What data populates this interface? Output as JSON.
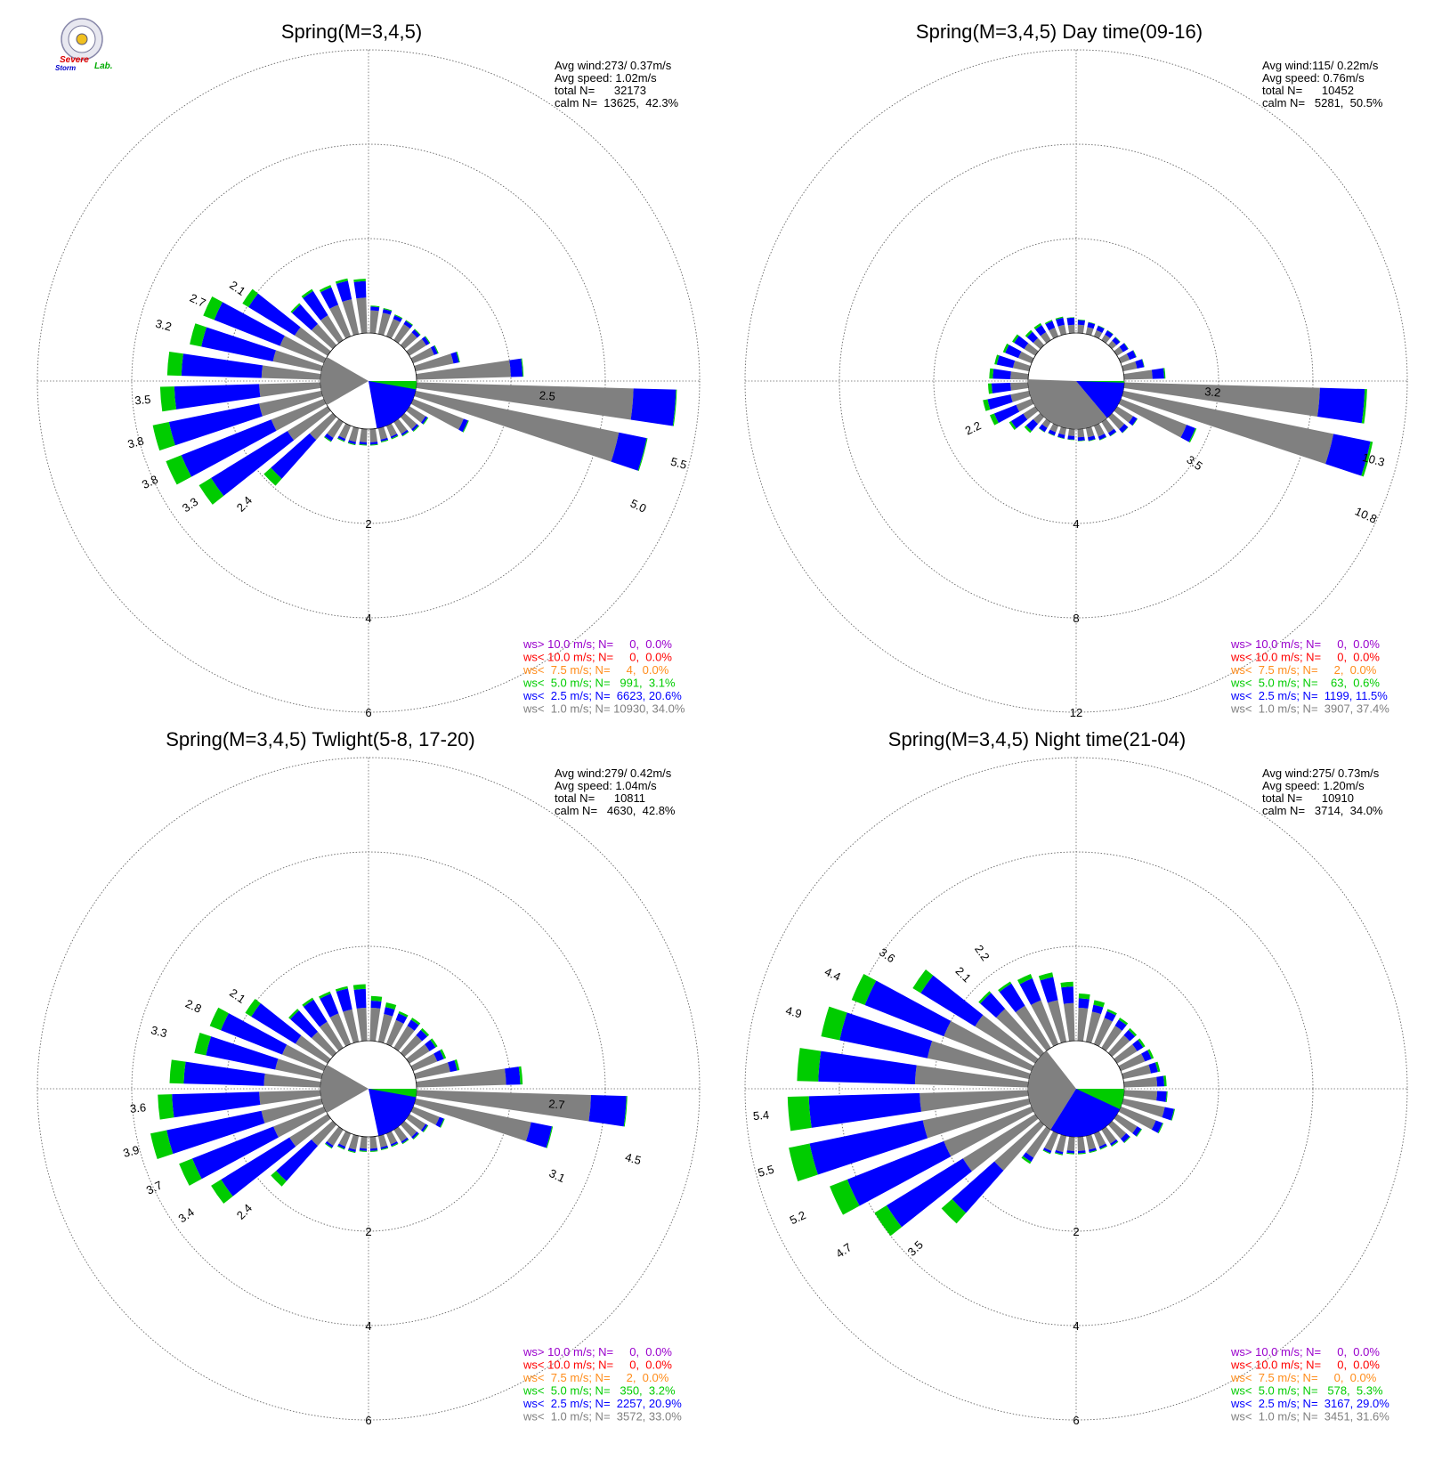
{
  "colors": {
    "ws_gt_10": "#9900cc",
    "ws_lt_10": "#ff0000",
    "ws_lt_7_5": "#ff8c1a",
    "ws_lt_5": "#00cc00",
    "ws_lt_2_5": "#0000ff",
    "ws_lt_1": "#808080",
    "grid": "#666666"
  },
  "logo": {
    "text_line1": "Severe",
    "text_line2": "Storm",
    "text_lab": "Lab."
  },
  "chart_data": [
    {
      "type": "wind-rose",
      "title": "Spring(M=3,4,5)",
      "stats": {
        "avg_wind": "Avg wind:273/ 0.37m/s",
        "avg_speed": "Avg speed: 1.02m/s",
        "total": "total N=      32173",
        "calm": "calm N=  13625,  42.3%"
      },
      "legend": [
        {
          "text": "ws> 10.0 m/s; N=     0,  0.0%",
          "color": "#9900cc"
        },
        {
          "text": "ws< 10.0 m/s; N=     0,  0.0%",
          "color": "#ff0000"
        },
        {
          "text": "ws<  7.5 m/s; N=     4,  0.0%",
          "color": "#ff8c1a"
        },
        {
          "text": "ws<  5.0 m/s; N=   991,  3.1%",
          "color": "#00cc00"
        },
        {
          "text": "ws<  2.5 m/s; N=  6623, 20.6%",
          "color": "#0000ff"
        },
        {
          "text": "ws<  1.0 m/s; N= 10930, 34.0%",
          "color": "#808080"
        }
      ],
      "ring_labels": [
        "2",
        "4",
        "6"
      ],
      "ring_max": 6,
      "calm_pie": {
        "gray_start_deg": 240,
        "gray_end_deg": 300,
        "blue_start_deg": 90,
        "blue_end_deg": 170,
        "green_start_deg": 90,
        "green_end_deg": 100
      },
      "directions_deg": [
        5,
        15,
        25,
        35,
        45,
        55,
        65,
        75,
        85,
        95,
        105,
        115,
        125,
        135,
        145,
        155,
        165,
        175,
        185,
        195,
        205,
        215,
        225,
        235,
        245,
        255,
        265,
        275,
        285,
        295,
        305,
        315,
        325,
        335,
        345,
        355
      ],
      "gray": [
        0.48,
        0.46,
        0.4,
        0.4,
        0.36,
        0.42,
        0.48,
        0.82,
        2.0,
        4.6,
        4.4,
        1.15,
        0.4,
        0.35,
        0.3,
        0.25,
        0.25,
        0.28,
        0.28,
        0.3,
        0.3,
        0.4,
        0.65,
        1.0,
        1.2,
        1.35,
        1.3,
        1.25,
        1.05,
        1.0,
        0.82,
        0.6,
        0.62,
        0.72,
        0.75,
        0.75
      ],
      "blue": [
        0.08,
        0.08,
        0.08,
        0.08,
        0.08,
        0.08,
        0.08,
        0.12,
        0.25,
        0.9,
        0.6,
        0.1,
        0.05,
        0.05,
        0.04,
        0.04,
        0.04,
        0.05,
        0.05,
        0.05,
        0.05,
        0.08,
        1.1,
        1.9,
        2.05,
        1.95,
        1.8,
        1.7,
        1.55,
        1.5,
        1.15,
        0.55,
        0.6,
        0.4,
        0.4,
        0.35
      ],
      "green": [
        0.02,
        0.02,
        0.02,
        0.02,
        0.02,
        0.02,
        0.02,
        0.02,
        0.02,
        0.02,
        0.02,
        0.02,
        0.02,
        0.02,
        0.02,
        0.02,
        0.02,
        0.02,
        0.02,
        0.02,
        0.02,
        0.02,
        0.2,
        0.3,
        0.35,
        0.35,
        0.3,
        0.3,
        0.25,
        0.25,
        0.15,
        0.04,
        0.05,
        0.05,
        0.05,
        0.05
      ],
      "petal_labels": [
        {
          "dir": 95,
          "text": "2.5",
          "value": 2.5
        },
        {
          "dir": 105,
          "text": "5.5",
          "value": 5.5
        },
        {
          "dir": 115,
          "text": "5.0",
          "value": 5.0
        },
        {
          "dir": 225,
          "text": "2.4",
          "value": 2.4
        },
        {
          "dir": 235,
          "text": "3.3",
          "value": 3.3
        },
        {
          "dir": 245,
          "text": "3.8",
          "value": 3.8
        },
        {
          "dir": 255,
          "text": "3.8",
          "value": 3.8
        },
        {
          "dir": 265,
          "text": "3.5",
          "value": 3.5
        },
        {
          "dir": 285,
          "text": "3.2",
          "value": 3.2
        },
        {
          "dir": 295,
          "text": "2.7",
          "value": 2.7
        },
        {
          "dir": 305,
          "text": "2.1",
          "value": 2.1
        }
      ]
    },
    {
      "type": "wind-rose",
      "title": "Spring(M=3,4,5) Day time(09-16)",
      "stats": {
        "avg_wind": "Avg wind:115/ 0.22m/s",
        "avg_speed": "Avg speed: 0.76m/s",
        "total": "total N=      10452",
        "calm": "calm N=   5281,  50.5%"
      },
      "legend": [
        {
          "text": "ws> 10.0 m/s; N=     0,  0.0%",
          "color": "#9900cc"
        },
        {
          "text": "ws< 10.0 m/s; N=     0,  0.0%",
          "color": "#ff0000"
        },
        {
          "text": "ws<  7.5 m/s; N=     2,  0.0%",
          "color": "#ff8c1a"
        },
        {
          "text": "ws<  5.0 m/s; N=    63,  0.6%",
          "color": "#00cc00"
        },
        {
          "text": "ws<  2.5 m/s; N=  1199, 11.5%",
          "color": "#0000ff"
        },
        {
          "text": "ws<  1.0 m/s; N=  3907, 37.4%",
          "color": "#808080"
        }
      ],
      "ring_labels": [
        "4",
        "8",
        "12"
      ],
      "ring_max": 12,
      "calm_pie": {
        "gray_start_deg": 140,
        "gray_end_deg": 272,
        "blue_start_deg": 90,
        "blue_end_deg": 140,
        "green_start_deg": 90,
        "green_end_deg": 92
      },
      "directions_deg": [
        5,
        15,
        25,
        35,
        45,
        55,
        65,
        75,
        85,
        95,
        105,
        115,
        125,
        135,
        145,
        155,
        165,
        175,
        185,
        195,
        205,
        215,
        225,
        235,
        245,
        255,
        265,
        275,
        285,
        295,
        305,
        315,
        325,
        335,
        345,
        355
      ],
      "gray": [
        0.35,
        0.3,
        0.28,
        0.28,
        0.25,
        0.3,
        0.4,
        0.6,
        1.2,
        8.3,
        9.1,
        3.0,
        0.8,
        0.7,
        0.55,
        0.5,
        0.4,
        0.35,
        0.3,
        0.3,
        0.3,
        0.3,
        0.4,
        0.6,
        0.7,
        0.8,
        0.75,
        0.75,
        0.7,
        0.6,
        0.55,
        0.4,
        0.4,
        0.4,
        0.4,
        0.35
      ],
      "blue": [
        0.2,
        0.2,
        0.2,
        0.2,
        0.2,
        0.25,
        0.3,
        0.3,
        0.5,
        1.9,
        1.6,
        0.4,
        0.2,
        0.2,
        0.15,
        0.15,
        0.15,
        0.15,
        0.15,
        0.15,
        0.15,
        0.2,
        0.4,
        0.6,
        1.0,
        1.0,
        0.8,
        0.75,
        0.7,
        0.6,
        0.5,
        0.35,
        0.35,
        0.3,
        0.3,
        0.3
      ],
      "green": [
        0.02,
        0.02,
        0.02,
        0.02,
        0.02,
        0.02,
        0.02,
        0.02,
        0.05,
        0.1,
        0.1,
        0.05,
        0.02,
        0.02,
        0.02,
        0.02,
        0.02,
        0.02,
        0.02,
        0.02,
        0.02,
        0.02,
        0.1,
        0.1,
        0.2,
        0.2,
        0.15,
        0.15,
        0.1,
        0.1,
        0.1,
        0.1,
        0.1,
        0.05,
        0.05,
        0.02
      ],
      "petal_labels": [
        {
          "dir": 95,
          "text": "3.2",
          "value": 3.2
        },
        {
          "dir": 105,
          "text": "10.3",
          "value": 10.3
        },
        {
          "dir": 115,
          "text": "10.8",
          "value": 10.8
        },
        {
          "dir": 125,
          "text": "3.5",
          "value": 3.5
        },
        {
          "dir": 245,
          "text": "2.2",
          "value": 2.2
        }
      ]
    },
    {
      "type": "wind-rose",
      "title": "Spring(M=3,4,5) Twlight(5-8, 17-20)",
      "stats": {
        "avg_wind": "Avg wind:279/ 0.42m/s",
        "avg_speed": "Avg speed: 1.04m/s",
        "total": "total N=      10811",
        "calm": "calm N=   4630,  42.8%"
      },
      "legend": [
        {
          "text": "ws> 10.0 m/s; N=     0,  0.0%",
          "color": "#9900cc"
        },
        {
          "text": "ws< 10.0 m/s; N=     0,  0.0%",
          "color": "#ff0000"
        },
        {
          "text": "ws<  7.5 m/s; N=     2,  0.0%",
          "color": "#ff8c1a"
        },
        {
          "text": "ws<  5.0 m/s; N=   350,  3.2%",
          "color": "#00cc00"
        },
        {
          "text": "ws<  2.5 m/s; N=  2257, 20.9%",
          "color": "#0000ff"
        },
        {
          "text": "ws<  1.0 m/s; N=  3572, 33.0%",
          "color": "#808080"
        }
      ],
      "ring_labels": [
        "2",
        "4",
        "6"
      ],
      "ring_max": 6,
      "calm_pie": {
        "gray_start_deg": 240,
        "gray_end_deg": 300,
        "blue_start_deg": 90,
        "blue_end_deg": 168,
        "green_start_deg": 90,
        "green_end_deg": 100
      },
      "directions_deg": [
        5,
        15,
        25,
        35,
        45,
        55,
        65,
        75,
        85,
        95,
        105,
        115,
        125,
        135,
        145,
        155,
        165,
        175,
        185,
        195,
        205,
        215,
        225,
        235,
        245,
        255,
        265,
        275,
        285,
        295,
        305,
        315,
        325,
        335,
        345,
        355
      ],
      "gray": [
        0.7,
        0.6,
        0.55,
        0.55,
        0.5,
        0.5,
        0.55,
        0.75,
        1.9,
        3.7,
        2.5,
        0.6,
        0.4,
        0.35,
        0.3,
        0.25,
        0.25,
        0.25,
        0.25,
        0.3,
        0.3,
        0.4,
        0.6,
        0.95,
        1.15,
        1.3,
        1.3,
        1.2,
        1.0,
        0.95,
        0.8,
        0.6,
        0.65,
        0.7,
        0.7,
        0.7
      ],
      "blue": [
        0.15,
        0.15,
        0.15,
        0.15,
        0.15,
        0.15,
        0.15,
        0.15,
        0.3,
        0.75,
        0.45,
        0.1,
        0.05,
        0.05,
        0.04,
        0.04,
        0.04,
        0.05,
        0.05,
        0.05,
        0.05,
        0.05,
        1.0,
        1.7,
        1.85,
        2.05,
        1.85,
        1.7,
        1.5,
        1.4,
        1.1,
        0.6,
        0.55,
        0.45,
        0.45,
        0.4
      ],
      "green": [
        0.1,
        0.1,
        0.05,
        0.05,
        0.05,
        0.05,
        0.05,
        0.05,
        0.05,
        0.02,
        0.02,
        0.02,
        0.02,
        0.02,
        0.02,
        0.02,
        0.02,
        0.02,
        0.02,
        0.02,
        0.02,
        0.02,
        0.15,
        0.25,
        0.3,
        0.35,
        0.3,
        0.3,
        0.25,
        0.25,
        0.15,
        0.05,
        0.05,
        0.05,
        0.05,
        0.1
      ],
      "petal_labels": [
        {
          "dir": 95,
          "text": "2.7",
          "value": 2.7
        },
        {
          "dir": 105,
          "text": "4.5",
          "value": 4.5
        },
        {
          "dir": 115,
          "text": "3.1",
          "value": 3.1
        },
        {
          "dir": 225,
          "text": "2.4",
          "value": 2.4
        },
        {
          "dir": 235,
          "text": "3.4",
          "value": 3.4
        },
        {
          "dir": 245,
          "text": "3.7",
          "value": 3.7
        },
        {
          "dir": 255,
          "text": "3.9",
          "value": 3.9
        },
        {
          "dir": 265,
          "text": "3.6",
          "value": 3.6
        },
        {
          "dir": 285,
          "text": "3.3",
          "value": 3.3
        },
        {
          "dir": 295,
          "text": "2.8",
          "value": 2.8
        },
        {
          "dir": 305,
          "text": "2.1",
          "value": 2.1
        }
      ]
    },
    {
      "type": "wind-rose",
      "title": "Spring(M=3,4,5) Night time(21-04)",
      "stats": {
        "avg_wind": "Avg wind:275/ 0.73m/s",
        "avg_speed": "Avg speed: 1.20m/s",
        "total": "total N=      10910",
        "calm": "calm N=   3714,  34.0%"
      },
      "legend": [
        {
          "text": "ws> 10.0 m/s; N=     0,  0.0%",
          "color": "#9900cc"
        },
        {
          "text": "ws< 10.0 m/s; N=     0,  0.0%",
          "color": "#ff0000"
        },
        {
          "text": "ws<  7.5 m/s; N=     0,  0.0%",
          "color": "#ff8c1a"
        },
        {
          "text": "ws<  5.0 m/s; N=   578,  5.3%",
          "color": "#00cc00"
        },
        {
          "text": "ws<  2.5 m/s; N=  3167, 29.0%",
          "color": "#0000ff"
        },
        {
          "text": "ws<  1.0 m/s; N=  3451, 31.6%",
          "color": "#808080"
        }
      ],
      "ring_labels": [
        "2",
        "4",
        "6"
      ],
      "ring_max": 6,
      "calm_pie": {
        "gray_start_deg": 212,
        "gray_end_deg": 322,
        "blue_start_deg": 90,
        "blue_end_deg": 212,
        "green_start_deg": 90,
        "green_end_deg": 115
      },
      "directions_deg": [
        5,
        15,
        25,
        35,
        45,
        55,
        65,
        75,
        85,
        95,
        105,
        115,
        125,
        135,
        145,
        155,
        165,
        175,
        185,
        195,
        205,
        215,
        225,
        235,
        245,
        255,
        265,
        275,
        285,
        295,
        305,
        315,
        325,
        335,
        345,
        355
      ],
      "gray": [
        0.7,
        0.65,
        0.6,
        0.55,
        0.5,
        0.5,
        0.55,
        0.6,
        0.7,
        0.7,
        0.9,
        0.8,
        0.5,
        0.4,
        0.35,
        0.3,
        0.3,
        0.3,
        0.3,
        0.35,
        0.4,
        0.7,
        1.3,
        1.8,
        2.0,
        2.3,
        2.3,
        2.4,
        2.2,
        2.0,
        1.5,
        1.25,
        1.05,
        1.0,
        0.9,
        0.8
      ],
      "blue": [
        0.2,
        0.15,
        0.15,
        0.15,
        0.15,
        0.15,
        0.15,
        0.15,
        0.15,
        0.2,
        0.2,
        0.15,
        0.1,
        0.1,
        0.05,
        0.05,
        0.05,
        0.05,
        0.05,
        0.05,
        0.05,
        0.1,
        1.2,
        1.9,
        2.2,
        2.45,
        2.35,
        2.05,
        1.9,
        1.8,
        1.35,
        0.45,
        0.55,
        0.5,
        0.5,
        0.35
      ],
      "green": [
        0.1,
        0.1,
        0.05,
        0.05,
        0.05,
        0.05,
        0.05,
        0.05,
        0.05,
        0.02,
        0.02,
        0.02,
        0.02,
        0.02,
        0.02,
        0.02,
        0.02,
        0.02,
        0.02,
        0.02,
        0.02,
        0.05,
        0.3,
        0.3,
        0.4,
        0.45,
        0.45,
        0.45,
        0.4,
        0.3,
        0.2,
        0.05,
        0.05,
        0.1,
        0.1,
        0.1
      ],
      "petal_labels": [
        {
          "dir": 225,
          "text": "3.5",
          "value": 3.5
        },
        {
          "dir": 235,
          "text": "4.7",
          "value": 4.7
        },
        {
          "dir": 245,
          "text": "5.2",
          "value": 5.2
        },
        {
          "dir": 255,
          "text": "5.5",
          "value": 5.5
        },
        {
          "dir": 265,
          "text": "5.4",
          "value": 5.4
        },
        {
          "dir": 285,
          "text": "4.9",
          "value": 4.9
        },
        {
          "dir": 295,
          "text": "4.4",
          "value": 4.4
        },
        {
          "dir": 305,
          "text": "3.6",
          "value": 3.6
        },
        {
          "dir": 315,
          "text": "2.1",
          "value": 2.1
        },
        {
          "dir": 325,
          "text": "2.2",
          "value": 2.2
        }
      ]
    }
  ]
}
